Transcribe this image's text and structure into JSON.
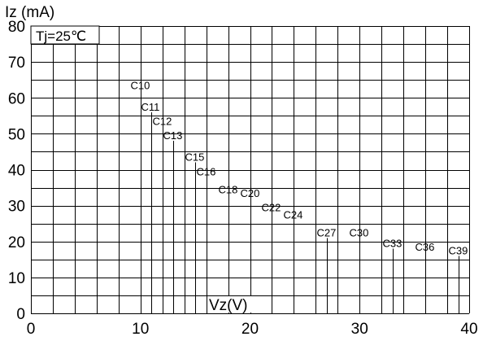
{
  "chart_data": {
    "type": "line",
    "title": "",
    "ylabel": "Iz (mA)",
    "xlabel": "Vz(V)",
    "condition": "Tj=25℃",
    "xlim": [
      0,
      40
    ],
    "ylim": [
      0,
      80
    ],
    "x_ticks": [
      "0",
      "10",
      "20",
      "30",
      "40"
    ],
    "y_ticks": [
      "0",
      "10",
      "20",
      "30",
      "40",
      "50",
      "60",
      "70",
      "80"
    ],
    "grid": true,
    "series": [
      {
        "name": "C10",
        "x": 10.0,
        "y_top": 62
      },
      {
        "name": "C11",
        "x": 11.0,
        "y_top": 56
      },
      {
        "name": "C12",
        "x": 12.0,
        "y_top": 52
      },
      {
        "name": "C13",
        "x": 13.0,
        "y_top": 48
      },
      {
        "name": "C15",
        "x": 15.0,
        "y_top": 42
      },
      {
        "name": "C16",
        "x": 16.0,
        "y_top": 38
      },
      {
        "name": "C18",
        "x": 18.0,
        "y_top": 33
      },
      {
        "name": "C20",
        "x": 20.0,
        "y_top": 32
      },
      {
        "name": "C22",
        "x": 22.0,
        "y_top": 28
      },
      {
        "name": "C24",
        "x": 24.0,
        "y_top": 26
      },
      {
        "name": "C27",
        "x": 27.0,
        "y_top": 21
      },
      {
        "name": "C30",
        "x": 30.0,
        "y_top": 21
      },
      {
        "name": "C33",
        "x": 33.0,
        "y_top": 18
      },
      {
        "name": "C36",
        "x": 36.0,
        "y_top": 17
      },
      {
        "name": "C39",
        "x": 39.0,
        "y_top": 16
      }
    ],
    "extra_lines": [
      {
        "x": 2.0,
        "y_top": 73
      },
      {
        "x": 4.0,
        "y_top": 73
      }
    ]
  }
}
